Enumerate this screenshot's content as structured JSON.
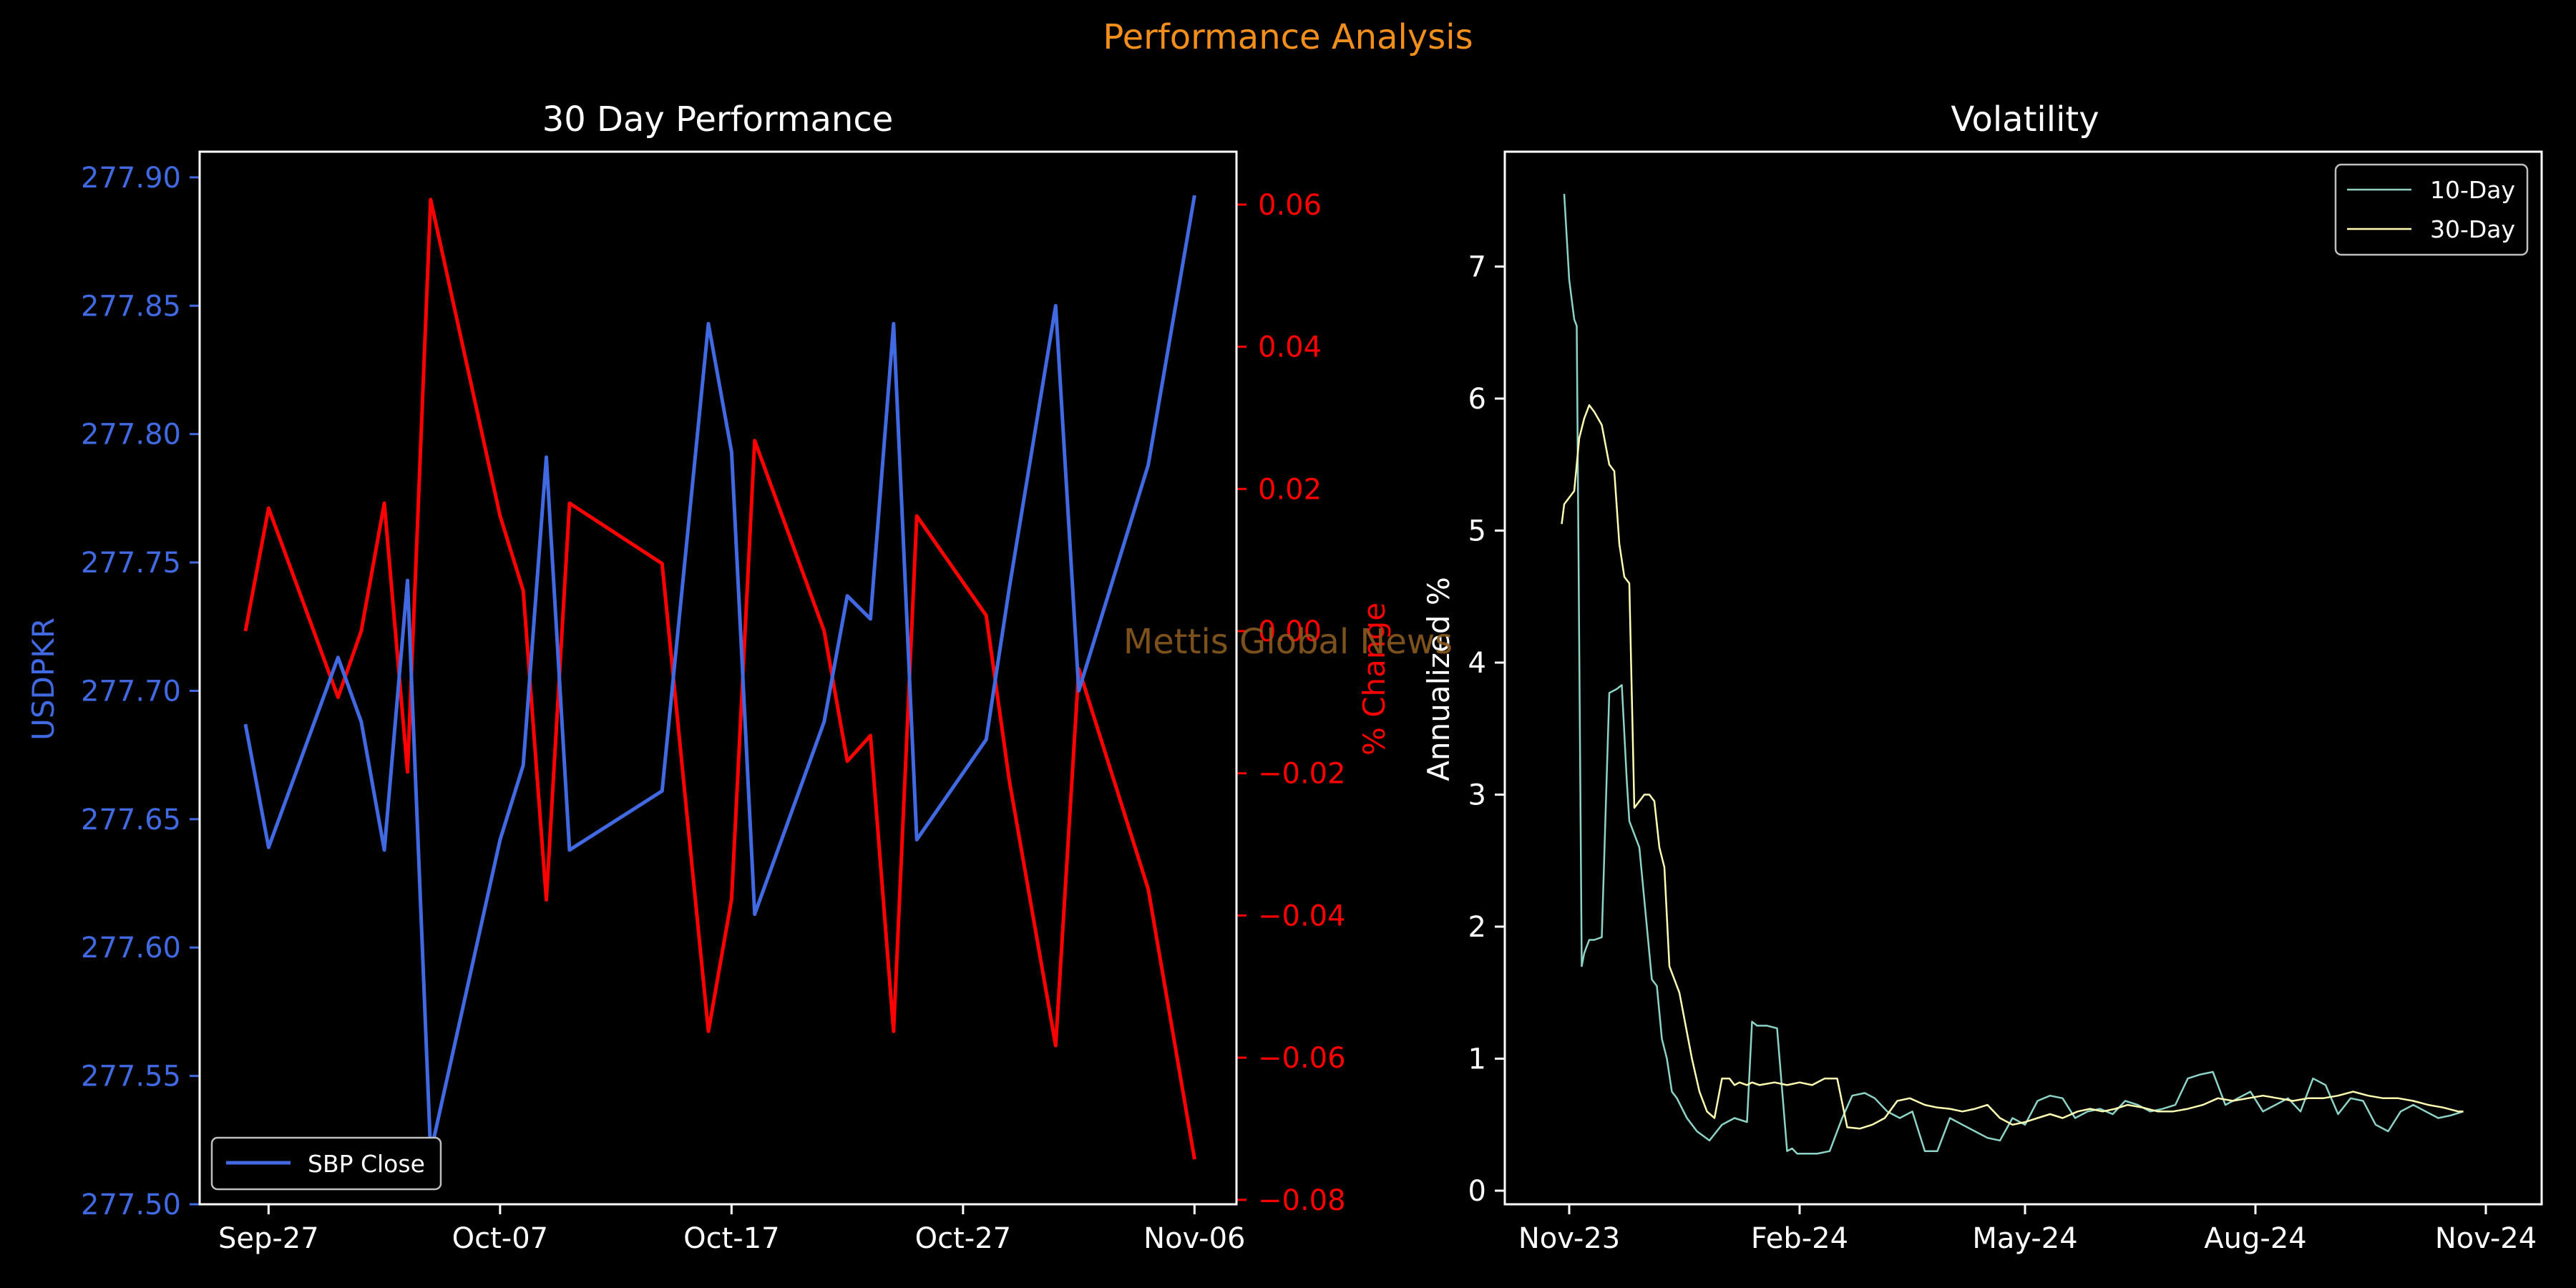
{
  "figure_title": "Performance Analysis",
  "watermark": "Mettis Global News",
  "colors": {
    "background": "#000000",
    "suptitle": "#f28e1c",
    "watermark": "#8a5a1e",
    "usd": "#4169e1",
    "pct": "#ff0000",
    "vol10": "#8dd3c7",
    "vol30": "#ffffb3",
    "axis": "#ffffff"
  },
  "chart_data": [
    {
      "type": "line",
      "title": "30 Day Performance",
      "xlabel": "",
      "ylabel": "USDPKR",
      "ylabel_right": "% Change",
      "x_ticks": [
        "Sep-27",
        "Oct-07",
        "Oct-17",
        "Oct-27",
        "Nov-06"
      ],
      "ylim": [
        277.5,
        277.91
      ],
      "y_ticks": [
        "277.50",
        "277.55",
        "277.60",
        "277.65",
        "277.70",
        "277.75",
        "277.80",
        "277.85",
        "277.90"
      ],
      "ylim_right": [
        -0.08,
        0.068
      ],
      "y_ticks_right": [
        "0.06",
        "0.04",
        "0.02",
        "0.00",
        "−0.02",
        "−0.04",
        "−0.06",
        "−0.08"
      ],
      "legend": [
        "SBP Close"
      ],
      "legend_position": "lower-left",
      "series": [
        {
          "name": "SBP Close",
          "axis": "left",
          "x": [
            "2024-09-26",
            "2024-09-27",
            "2024-09-30",
            "2024-10-01",
            "2024-10-02",
            "2024-10-03",
            "2024-10-04",
            "2024-10-07",
            "2024-10-08",
            "2024-10-09",
            "2024-10-10",
            "2024-10-14",
            "2024-10-16",
            "2024-10-17",
            "2024-10-18",
            "2024-10-21",
            "2024-10-22",
            "2024-10-23",
            "2024-10-24",
            "2024-10-25",
            "2024-10-28",
            "2024-10-29",
            "2024-10-31",
            "2024-11-01",
            "2024-11-04",
            "2024-11-06"
          ],
          "values": [
            277.687,
            277.639,
            277.713,
            277.688,
            277.638,
            277.743,
            277.52,
            277.642,
            277.671,
            277.791,
            277.638,
            277.661,
            277.843,
            277.793,
            277.613,
            277.688,
            277.737,
            277.728,
            277.843,
            277.642,
            277.681,
            277.74,
            277.85,
            277.7,
            277.788,
            277.893
          ]
        },
        {
          "name": "% Change",
          "axis": "right",
          "x": [
            "2024-09-26",
            "2024-09-27",
            "2024-09-30",
            "2024-10-01",
            "2024-10-02",
            "2024-10-03",
            "2024-10-04",
            "2024-10-07",
            "2024-10-08",
            "2024-10-09",
            "2024-10-10",
            "2024-10-14",
            "2024-10-16",
            "2024-10-17",
            "2024-10-18",
            "2024-10-21",
            "2024-10-22",
            "2024-10-23",
            "2024-10-24",
            "2024-10-25",
            "2024-10-28",
            "2024-10-29",
            "2024-10-31",
            "2024-11-01",
            "2024-11-04",
            "2024-11-06"
          ],
          "values": [
            0.0,
            0.0173,
            -0.0093,
            0.0,
            0.018,
            -0.0198,
            0.0607,
            0.0162,
            0.0057,
            -0.0378,
            0.018,
            0.0095,
            -0.0563,
            -0.0377,
            0.0268,
            0.0,
            -0.0183,
            -0.0147,
            -0.0563,
            0.0162,
            0.0022,
            -0.021,
            -0.0583,
            -0.0053,
            -0.0363,
            -0.0743
          ]
        }
      ]
    },
    {
      "type": "line",
      "title": "Volatility",
      "xlabel": "",
      "ylabel": "Annualized %",
      "x_ticks": [
        "Nov-23",
        "Feb-24",
        "May-24",
        "Aug-24",
        "Nov-24"
      ],
      "ylim": [
        -0.12,
        7.85
      ],
      "y_ticks": [
        "0",
        "1",
        "2",
        "3",
        "4",
        "5",
        "6",
        "7"
      ],
      "legend": [
        "10-Day",
        "30-Day"
      ],
      "legend_position": "upper-right",
      "series": [
        {
          "name": "10-Day",
          "x": [
            "2023-11-13",
            "2023-11-15",
            "2023-11-17",
            "2023-11-18",
            "2023-11-20",
            "2023-11-21",
            "2023-11-23",
            "2023-11-25",
            "2023-11-28",
            "2023-12-01",
            "2023-12-04",
            "2023-12-06",
            "2023-12-08",
            "2023-12-09",
            "2023-12-11",
            "2023-12-13",
            "2023-12-15",
            "2023-12-18",
            "2023-12-20",
            "2023-12-22",
            "2023-12-24",
            "2023-12-26",
            "2023-12-28",
            "2024-01-01",
            "2024-01-05",
            "2024-01-10",
            "2024-01-15",
            "2024-01-20",
            "2024-01-25",
            "2024-01-27",
            "2024-01-29",
            "2024-02-02",
            "2024-02-06",
            "2024-02-10",
            "2024-02-12",
            "2024-02-14",
            "2024-02-17",
            "2024-02-22",
            "2024-02-27",
            "2024-03-03",
            "2024-03-07",
            "2024-03-12",
            "2024-03-16",
            "2024-03-21",
            "2024-03-26",
            "2024-03-31",
            "2024-04-05",
            "2024-04-10",
            "2024-04-15",
            "2024-04-20",
            "2024-04-25",
            "2024-04-30",
            "2024-05-05",
            "2024-05-10",
            "2024-05-15",
            "2024-05-20",
            "2024-05-25",
            "2024-05-30",
            "2024-06-04",
            "2024-06-09",
            "2024-06-14",
            "2024-06-19",
            "2024-06-24",
            "2024-06-29",
            "2024-07-04",
            "2024-07-09",
            "2024-07-14",
            "2024-07-19",
            "2024-07-24",
            "2024-07-29",
            "2024-08-03",
            "2024-08-08",
            "2024-08-13",
            "2024-08-18",
            "2024-08-23",
            "2024-08-28",
            "2024-09-02",
            "2024-09-07",
            "2024-09-12",
            "2024-09-17",
            "2024-09-22",
            "2024-09-27",
            "2024-10-02",
            "2024-10-07",
            "2024-10-12",
            "2024-10-17",
            "2024-10-22",
            "2024-10-27",
            "2024-11-01",
            "2024-11-06"
          ],
          "values": [
            7.55,
            6.9,
            6.6,
            6.55,
            1.7,
            1.8,
            1.9,
            1.9,
            1.92,
            3.77,
            3.8,
            3.83,
            3.1,
            2.8,
            2.7,
            2.6,
            2.2,
            1.6,
            1.55,
            1.15,
            1.0,
            0.75,
            0.7,
            0.55,
            0.45,
            0.38,
            0.5,
            0.55,
            0.52,
            1.28,
            1.25,
            1.25,
            1.23,
            0.3,
            0.32,
            0.28,
            0.28,
            0.28,
            0.3,
            0.55,
            0.72,
            0.74,
            0.7,
            0.6,
            0.55,
            0.6,
            0.3,
            0.3,
            0.55,
            0.5,
            0.45,
            0.4,
            0.38,
            0.55,
            0.5,
            0.68,
            0.72,
            0.7,
            0.55,
            0.6,
            0.62,
            0.58,
            0.68,
            0.65,
            0.6,
            0.62,
            0.65,
            0.85,
            0.88,
            0.9,
            0.65,
            0.7,
            0.75,
            0.6,
            0.65,
            0.7,
            0.6,
            0.85,
            0.8,
            0.58,
            0.7,
            0.68,
            0.5,
            0.45,
            0.6,
            0.65,
            0.6,
            0.55,
            0.57,
            0.6
          ]
        },
        {
          "name": "30-Day",
          "x": [
            "2023-11-12",
            "2023-11-13",
            "2023-11-15",
            "2023-11-17",
            "2023-11-19",
            "2023-11-21",
            "2023-11-23",
            "2023-11-25",
            "2023-11-28",
            "2023-12-01",
            "2023-12-03",
            "2023-12-05",
            "2023-12-07",
            "2023-12-09",
            "2023-12-11",
            "2023-12-13",
            "2023-12-15",
            "2023-12-17",
            "2023-12-19",
            "2023-12-21",
            "2023-12-23",
            "2023-12-25",
            "2023-12-27",
            "2023-12-29",
            "2024-01-01",
            "2024-01-03",
            "2024-01-06",
            "2024-01-09",
            "2024-01-12",
            "2024-01-15",
            "2024-01-18",
            "2024-01-20",
            "2024-01-22",
            "2024-01-25",
            "2024-01-27",
            "2024-01-30",
            "2024-02-05",
            "2024-02-10",
            "2024-02-15",
            "2024-02-20",
            "2024-02-25",
            "2024-03-01",
            "2024-03-05",
            "2024-03-10",
            "2024-03-15",
            "2024-03-20",
            "2024-03-25",
            "2024-03-30",
            "2024-04-05",
            "2024-04-10",
            "2024-04-15",
            "2024-04-20",
            "2024-04-25",
            "2024-04-30",
            "2024-05-05",
            "2024-05-10",
            "2024-05-15",
            "2024-05-20",
            "2024-05-25",
            "2024-05-30",
            "2024-06-05",
            "2024-06-10",
            "2024-06-15",
            "2024-06-20",
            "2024-06-25",
            "2024-07-01",
            "2024-07-07",
            "2024-07-13",
            "2024-07-19",
            "2024-07-25",
            "2024-07-31",
            "2024-08-06",
            "2024-08-12",
            "2024-08-18",
            "2024-08-24",
            "2024-08-30",
            "2024-09-05",
            "2024-09-11",
            "2024-09-17",
            "2024-09-23",
            "2024-09-29",
            "2024-10-05",
            "2024-10-11",
            "2024-10-17",
            "2024-10-23",
            "2024-10-29",
            "2024-11-04",
            "2024-11-06"
          ],
          "values": [
            5.05,
            5.2,
            5.25,
            5.3,
            5.7,
            5.85,
            5.95,
            5.9,
            5.8,
            5.5,
            5.45,
            4.9,
            4.65,
            4.6,
            2.9,
            2.95,
            3.0,
            3.0,
            2.95,
            2.6,
            2.45,
            1.7,
            1.6,
            1.5,
            1.2,
            1.0,
            0.75,
            0.6,
            0.55,
            0.85,
            0.85,
            0.8,
            0.82,
            0.8,
            0.82,
            0.8,
            0.82,
            0.8,
            0.82,
            0.8,
            0.85,
            0.85,
            0.48,
            0.47,
            0.5,
            0.55,
            0.68,
            0.7,
            0.65,
            0.63,
            0.62,
            0.6,
            0.62,
            0.65,
            0.55,
            0.5,
            0.52,
            0.55,
            0.58,
            0.55,
            0.6,
            0.62,
            0.6,
            0.62,
            0.65,
            0.63,
            0.6,
            0.6,
            0.62,
            0.65,
            0.7,
            0.68,
            0.7,
            0.72,
            0.7,
            0.68,
            0.7,
            0.7,
            0.72,
            0.75,
            0.72,
            0.7,
            0.7,
            0.68,
            0.65,
            0.63,
            0.6,
            0.6
          ]
        }
      ]
    }
  ]
}
